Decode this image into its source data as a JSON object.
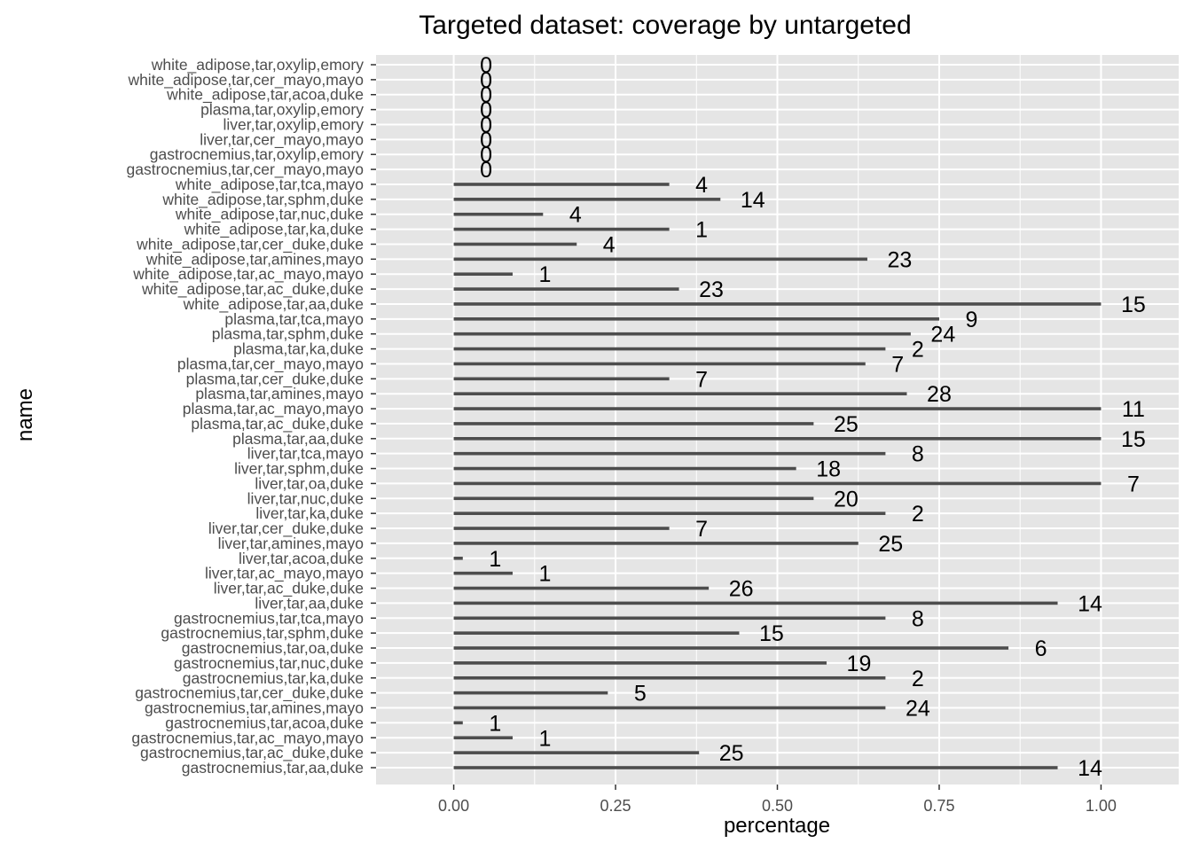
{
  "chart_data": {
    "type": "bar",
    "orientation": "horizontal",
    "title": "Targeted dataset: coverage by untargeted",
    "xlabel": "percentage",
    "ylabel": "name",
    "xlim": [
      -0.12,
      1.12
    ],
    "x_ticks": [
      0,
      0.25,
      0.5,
      0.75,
      1
    ],
    "x_tick_labels": [
      "0.00",
      "0.25",
      "0.50",
      "0.75",
      "1.00"
    ],
    "grid": true,
    "legend": "none",
    "colors": {
      "panel": "#e5e5e5",
      "grid": "#ffffff",
      "bar": "#4d4d4d",
      "label": "#000000"
    },
    "categories": [
      "gastrocnemius,tar,aa,duke",
      "gastrocnemius,tar,ac_duke,duke",
      "gastrocnemius,tar,ac_mayo,mayo",
      "gastrocnemius,tar,acoa,duke",
      "gastrocnemius,tar,amines,mayo",
      "gastrocnemius,tar,cer_duke,duke",
      "gastrocnemius,tar,ka,duke",
      "gastrocnemius,tar,nuc,duke",
      "gastrocnemius,tar,oa,duke",
      "gastrocnemius,tar,sphm,duke",
      "gastrocnemius,tar,tca,mayo",
      "liver,tar,aa,duke",
      "liver,tar,ac_duke,duke",
      "liver,tar,ac_mayo,mayo",
      "liver,tar,acoa,duke",
      "liver,tar,amines,mayo",
      "liver,tar,cer_duke,duke",
      "liver,tar,ka,duke",
      "liver,tar,nuc,duke",
      "liver,tar,oa,duke",
      "liver,tar,sphm,duke",
      "liver,tar,tca,mayo",
      "plasma,tar,aa,duke",
      "plasma,tar,ac_duke,duke",
      "plasma,tar,ac_mayo,mayo",
      "plasma,tar,amines,mayo",
      "plasma,tar,cer_duke,duke",
      "plasma,tar,cer_mayo,mayo",
      "plasma,tar,ka,duke",
      "plasma,tar,sphm,duke",
      "plasma,tar,tca,mayo",
      "white_adipose,tar,aa,duke",
      "white_adipose,tar,ac_duke,duke",
      "white_adipose,tar,ac_mayo,mayo",
      "white_adipose,tar,amines,mayo",
      "white_adipose,tar,cer_duke,duke",
      "white_adipose,tar,ka,duke",
      "white_adipose,tar,nuc,duke",
      "white_adipose,tar,sphm,duke",
      "white_adipose,tar,tca,mayo",
      "gastrocnemius,tar,cer_mayo,mayo",
      "gastrocnemius,tar,oxylip,emory",
      "liver,tar,cer_mayo,mayo",
      "liver,tar,oxylip,emory",
      "plasma,tar,oxylip,emory",
      "white_adipose,tar,acoa,duke",
      "white_adipose,tar,cer_mayo,mayo",
      "white_adipose,tar,oxylip,emory"
    ],
    "values": [
      0.933,
      0.379,
      0.091,
      0.014,
      0.667,
      0.238,
      0.667,
      0.576,
      0.857,
      0.441,
      0.667,
      0.933,
      0.394,
      0.091,
      0.014,
      0.625,
      0.333,
      0.667,
      0.556,
      1.0,
      0.529,
      0.667,
      1.0,
      0.556,
      1.0,
      0.7,
      0.333,
      0.636,
      0.667,
      0.706,
      0.75,
      1.0,
      0.348,
      0.091,
      0.639,
      0.19,
      0.333,
      0.138,
      0.412,
      0.333,
      0,
      0,
      0,
      0,
      0,
      0,
      0,
      0
    ],
    "labels": [
      "14",
      "25",
      "1",
      "1",
      "24",
      "5",
      "2",
      "19",
      "6",
      "15",
      "8",
      "14",
      "26",
      "1",
      "1",
      "25",
      "7",
      "2",
      "20",
      "7",
      "18",
      "8",
      "15",
      "25",
      "11",
      "28",
      "7",
      "7",
      "2",
      "24",
      "9",
      "15",
      "23",
      "1",
      "23",
      "4",
      "1",
      "4",
      "14",
      "4",
      "0",
      "0",
      "0",
      "0",
      "0",
      "0",
      "0",
      "0"
    ]
  }
}
